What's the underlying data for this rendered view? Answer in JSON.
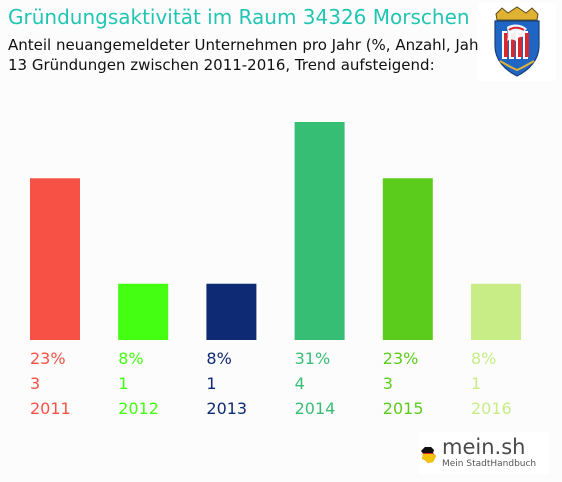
{
  "title": "Gründungsaktivität im Raum 34326 Morschen",
  "subtitle_line1": "Anteil neuangemeldeter Unternehmen pro Jahr (%, Anzahl, Jahr)",
  "subtitle_line2": "13 Gründungen zwischen 2011-2016, Trend aufsteigend:",
  "logo": {
    "main": "mein.sh",
    "sub": "Mein StadtHandbuch"
  },
  "chart_data": {
    "type": "bar",
    "categories": [
      "2011",
      "2012",
      "2013",
      "2014",
      "2015",
      "2016"
    ],
    "values": [
      23,
      8,
      8,
      31,
      23,
      8
    ],
    "value_labels": [
      "23%",
      "8%",
      "8%",
      "31%",
      "23%",
      "8%"
    ],
    "count_labels": [
      "3",
      "1",
      "1",
      "4",
      "3",
      "1"
    ],
    "colors": [
      "#f75146",
      "#44ff12",
      "#0f2a74",
      "#37be75",
      "#5ccc1c",
      "#c8ed87"
    ],
    "ylim": [
      0,
      31
    ],
    "grid": false,
    "legend": "none"
  }
}
